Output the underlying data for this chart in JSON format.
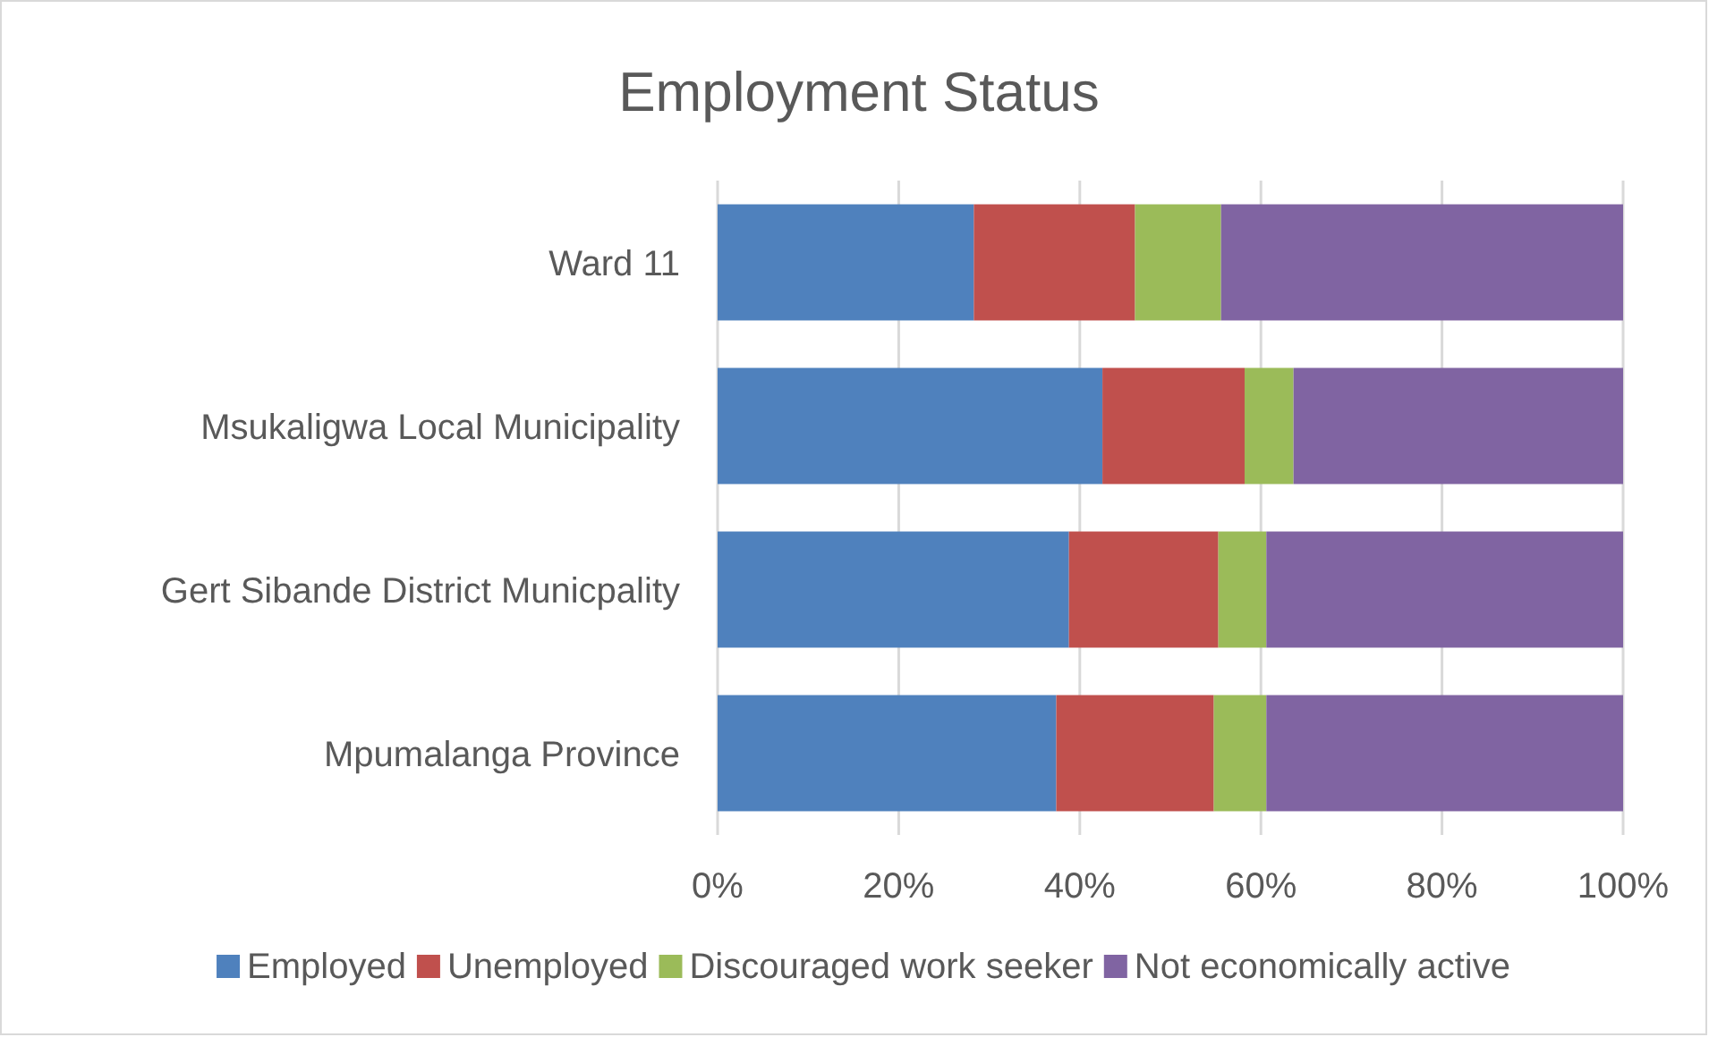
{
  "chart_data": {
    "type": "bar",
    "title": "Employment Status",
    "orientation": "horizontal",
    "stacked": true,
    "categories": [
      "Ward 11",
      "Msukaligwa Local Municipality",
      "Gert Sibande District Municpality",
      "Mpumalanga Province"
    ],
    "series": [
      {
        "name": "Employed",
        "color": "#4f81bd",
        "values": [
          28.3,
          42.5,
          38.8,
          37.4
        ]
      },
      {
        "name": "Unemployed",
        "color": "#c0504d",
        "values": [
          17.8,
          15.7,
          16.5,
          17.4
        ]
      },
      {
        "name": "Discouraged work seeker",
        "color": "#9bbb59",
        "values": [
          9.5,
          5.4,
          5.3,
          5.8
        ]
      },
      {
        "name": "Not economically active",
        "color": "#8064a2",
        "values": [
          44.4,
          36.4,
          39.4,
          39.4
        ]
      }
    ],
    "xlim": [
      0,
      100
    ],
    "xticks": [
      {
        "value": 0,
        "label": "0%"
      },
      {
        "value": 20,
        "label": "20%"
      },
      {
        "value": 40,
        "label": "40%"
      },
      {
        "value": 60,
        "label": "60%"
      },
      {
        "value": 80,
        "label": "80%"
      },
      {
        "value": 100,
        "label": "100%"
      }
    ],
    "grid": "x",
    "legend": "bottom"
  }
}
